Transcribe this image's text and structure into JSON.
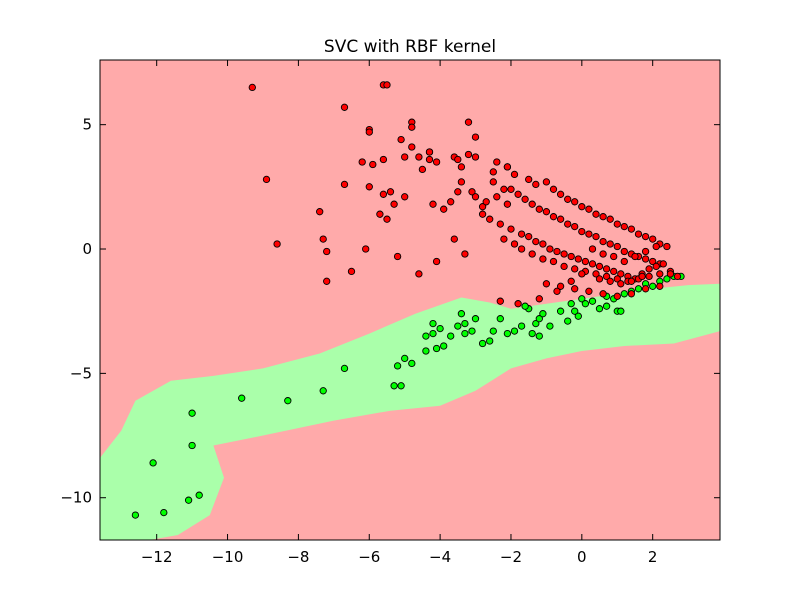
{
  "chart_data": {
    "type": "scatter",
    "title": "SVC with RBF kernel",
    "xlabel": "",
    "ylabel": "",
    "xlim": [
      -13.6,
      3.9
    ],
    "ylim": [
      -11.7,
      7.6
    ],
    "grid": false,
    "legend": "none",
    "x_ticks": [
      {
        "value": -12,
        "label": "−12"
      },
      {
        "value": -10,
        "label": "−10"
      },
      {
        "value": -8,
        "label": "−8"
      },
      {
        "value": -6,
        "label": "−6"
      },
      {
        "value": -4,
        "label": "−4"
      },
      {
        "value": -2,
        "label": "−2"
      },
      {
        "value": 0,
        "label": "0"
      },
      {
        "value": 2,
        "label": "2"
      }
    ],
    "y_ticks": [
      {
        "value": 5,
        "label": "5"
      },
      {
        "value": 0,
        "label": "0"
      },
      {
        "value": -5,
        "label": "−5"
      },
      {
        "value": -10,
        "label": "−10"
      }
    ],
    "colors": {
      "region_red": "#ffaaaa",
      "region_green": "#aaffaa",
      "point_red": "#ff0000",
      "point_green": "#00ff00",
      "edge": "#000000"
    },
    "decision_region_green": [
      [
        -13.6,
        -8.4
      ],
      [
        -13.0,
        -7.3
      ],
      [
        -12.6,
        -6.1
      ],
      [
        -11.6,
        -5.3
      ],
      [
        -10.4,
        -5.1
      ],
      [
        -9.0,
        -4.8
      ],
      [
        -7.4,
        -4.2
      ],
      [
        -6.0,
        -3.4
      ],
      [
        -4.7,
        -2.6
      ],
      [
        -3.4,
        -1.95
      ],
      [
        -2.6,
        -2.15
      ],
      [
        -2.0,
        -2.4
      ],
      [
        -1.0,
        -2.2
      ],
      [
        0.0,
        -2.0
      ],
      [
        1.0,
        -1.8
      ],
      [
        2.0,
        -1.6
      ],
      [
        3.0,
        -1.45
      ],
      [
        3.9,
        -1.4
      ],
      [
        3.9,
        -3.3
      ],
      [
        2.6,
        -3.8
      ],
      [
        1.2,
        -3.9
      ],
      [
        0.0,
        -4.1
      ],
      [
        -1.0,
        -4.4
      ],
      [
        -2.0,
        -4.8
      ],
      [
        -3.0,
        -5.7
      ],
      [
        -4.0,
        -6.3
      ],
      [
        -5.4,
        -6.5
      ],
      [
        -7.0,
        -6.9
      ],
      [
        -9.0,
        -7.5
      ],
      [
        -10.4,
        -7.9
      ],
      [
        -10.1,
        -9.2
      ],
      [
        -10.5,
        -10.7
      ],
      [
        -11.4,
        -11.5
      ],
      [
        -12.2,
        -11.7
      ],
      [
        -13.6,
        -11.7
      ]
    ],
    "series": [
      {
        "class": "green",
        "x": [
          -12.6,
          -11.8,
          -12.1,
          -11.1,
          -10.8,
          -11.0,
          -11.0,
          -9.6,
          -8.3,
          -7.3,
          -6.7,
          -5.3,
          -5.1,
          -5.0,
          -5.2,
          -4.8,
          -4.4,
          -4.4,
          -4.2,
          -4.2,
          -4.1,
          -4.0,
          -3.9,
          -3.7,
          -3.5,
          -3.4,
          -3.3,
          -3.3,
          -3.1,
          -3.0,
          -2.8,
          -2.6,
          -2.5,
          -2.3,
          -2.1,
          -1.9,
          -1.7,
          -1.5,
          -1.4,
          -1.3,
          -1.2,
          -1.1,
          -0.9,
          -0.6,
          -0.4,
          -0.3,
          -0.1,
          0.0,
          0.1,
          0.3,
          0.5,
          0.7,
          0.9,
          1.0,
          1.2,
          1.4,
          1.6,
          1.8,
          2.0,
          2.2,
          2.4,
          2.6,
          2.8,
          1.1,
          0.7,
          -0.2,
          -1.6,
          -1.2
        ],
        "y": [
          -10.7,
          -10.6,
          -8.6,
          -10.1,
          -9.9,
          -7.9,
          -6.6,
          -6.0,
          -6.1,
          -5.7,
          -4.8,
          -5.5,
          -5.5,
          -4.4,
          -4.7,
          -4.6,
          -4.1,
          -3.5,
          -3.0,
          -3.4,
          -4.0,
          -3.2,
          -3.9,
          -3.5,
          -3.1,
          -2.6,
          -3.4,
          -3.0,
          -3.3,
          -2.8,
          -3.8,
          -3.7,
          -3.3,
          -2.8,
          -3.4,
          -3.3,
          -3.1,
          -2.4,
          -3.4,
          -3.0,
          -2.8,
          -2.6,
          -3.1,
          -2.5,
          -2.9,
          -2.2,
          -2.7,
          -2.0,
          -2.2,
          -2.1,
          -2.4,
          -1.9,
          -2.0,
          -2.5,
          -1.8,
          -1.7,
          -1.6,
          -1.4,
          -1.5,
          -1.3,
          -1.2,
          -1.1,
          -1.1,
          -2.5,
          -2.3,
          -2.5,
          -2.3,
          -3.5
        ]
      },
      {
        "class": "red",
        "x": [
          -9.3,
          -5.6,
          -5.5,
          -6.7,
          -6.0,
          -4.8,
          -4.8,
          -4.3,
          -3.2,
          -3.0,
          -8.9,
          -6.7,
          -5.6,
          -5.4,
          -5.3,
          -6.0,
          -5.7,
          -5.5,
          -5.0,
          -4.2,
          -3.9,
          -3.7,
          -3.4,
          -3.1,
          -2.8,
          -2.4,
          -2.1,
          -2.0,
          -7.4,
          -7.3,
          -7.2,
          -8.6,
          -6.2,
          -5.9,
          -5.6,
          -5.0,
          -4.5,
          -4.3,
          -3.6,
          -3.4,
          -3.2,
          -2.5,
          -2.1,
          -6.0,
          -5.1,
          -4.8,
          -4.6,
          -4.3,
          -4.1,
          -3.5,
          -3.0,
          -2.4,
          -2.1,
          -1.9,
          -1.5,
          -1.3,
          -1.0,
          -0.8,
          -0.6,
          -0.4,
          -0.2,
          0.0,
          0.2,
          0.4,
          0.6,
          0.8,
          1.0,
          1.2,
          1.4,
          1.6,
          1.8,
          2.0,
          2.2,
          2.4,
          -3.5,
          -3.0,
          -2.7,
          -2.5,
          -2.2,
          -1.8,
          -1.6,
          -1.4,
          -1.2,
          -1.0,
          -0.8,
          -0.6,
          -0.4,
          -0.2,
          0.0,
          0.2,
          0.4,
          0.6,
          0.8,
          1.0,
          1.2,
          1.4,
          1.6,
          1.8,
          2.0,
          2.2,
          -2.8,
          -2.6,
          -2.3,
          -2.0,
          -1.7,
          -1.5,
          -1.3,
          -1.1,
          -0.9,
          -0.7,
          -0.5,
          -0.3,
          -0.1,
          0.1,
          0.3,
          0.5,
          0.7,
          0.9,
          1.1,
          1.3,
          1.5,
          1.7,
          1.9,
          2.1,
          2.3,
          2.5,
          -2.2,
          -1.9,
          -1.7,
          -1.4,
          -1.1,
          -0.8,
          -0.5,
          -0.2,
          0.1,
          0.4,
          0.7,
          1.0,
          1.3,
          1.6,
          1.9,
          2.2,
          2.5,
          2.7,
          -1.0,
          -0.6,
          -0.2,
          0.2,
          0.6,
          1.0,
          1.4,
          1.8,
          2.2,
          0.3,
          0.6,
          0.9,
          1.2,
          1.5,
          1.8,
          2.1,
          0.5,
          0.8,
          1.1,
          1.4,
          1.7,
          0.0,
          -0.3,
          -0.7,
          -1.2,
          -1.8,
          -2.3,
          -3.3,
          -3.6,
          -4.1,
          -4.6,
          -5.2,
          -6.1,
          -6.5,
          -7.2
        ],
        "y": [
          6.5,
          6.6,
          6.6,
          5.7,
          4.8,
          5.1,
          4.9,
          3.9,
          5.1,
          4.5,
          2.8,
          2.6,
          2.2,
          2.3,
          1.8,
          2.5,
          1.4,
          1.2,
          2.1,
          1.8,
          1.6,
          1.9,
          2.7,
          2.3,
          1.7,
          2.1,
          1.8,
          2.4,
          1.5,
          0.4,
          -1.3,
          0.2,
          3.5,
          3.4,
          3.6,
          3.7,
          3.2,
          3.6,
          3.7,
          3.3,
          3.8,
          3.1,
          3.3,
          4.7,
          4.4,
          4.1,
          3.7,
          3.9,
          3.5,
          3.6,
          3.7,
          3.5,
          3.3,
          3.0,
          2.8,
          2.6,
          2.7,
          2.4,
          2.2,
          2.0,
          1.9,
          1.7,
          1.6,
          1.4,
          1.3,
          1.2,
          1.0,
          0.9,
          0.8,
          0.6,
          0.5,
          0.4,
          0.2,
          0.1,
          2.3,
          2.1,
          1.9,
          2.7,
          2.4,
          2.2,
          2.0,
          1.8,
          1.6,
          1.5,
          1.3,
          1.2,
          1.0,
          0.9,
          0.7,
          0.6,
          0.5,
          0.3,
          0.2,
          0.1,
          -0.1,
          -0.2,
          -0.3,
          -0.4,
          -0.5,
          -0.6,
          1.4,
          1.2,
          1.0,
          0.8,
          0.6,
          0.5,
          0.3,
          0.2,
          0.0,
          -0.1,
          -0.2,
          -0.3,
          -0.4,
          -0.5,
          -0.6,
          -0.7,
          -0.8,
          -0.9,
          -1.0,
          -1.1,
          -1.2,
          -1.0,
          -0.8,
          -0.7,
          -0.6,
          -0.9,
          0.4,
          0.2,
          0.0,
          -0.2,
          -0.4,
          -0.5,
          -0.7,
          -0.8,
          -0.9,
          -1.0,
          -1.1,
          -1.2,
          -1.3,
          -1.2,
          -1.1,
          -1.0,
          -1.0,
          -1.1,
          -1.4,
          -1.5,
          -1.6,
          -1.7,
          -1.8,
          -1.9,
          -1.8,
          -1.6,
          -1.5,
          0.0,
          -0.2,
          -0.3,
          -0.5,
          -0.3,
          -0.1,
          0.1,
          -1.2,
          -1.3,
          -1.4,
          -1.3,
          -1.1,
          -1.0,
          -1.3,
          -1.7,
          -2.0,
          -2.2,
          -2.1,
          -0.2,
          0.4,
          -0.5,
          -1.0,
          -0.3,
          0.0,
          -0.9,
          -0.1
        ]
      }
    ]
  }
}
